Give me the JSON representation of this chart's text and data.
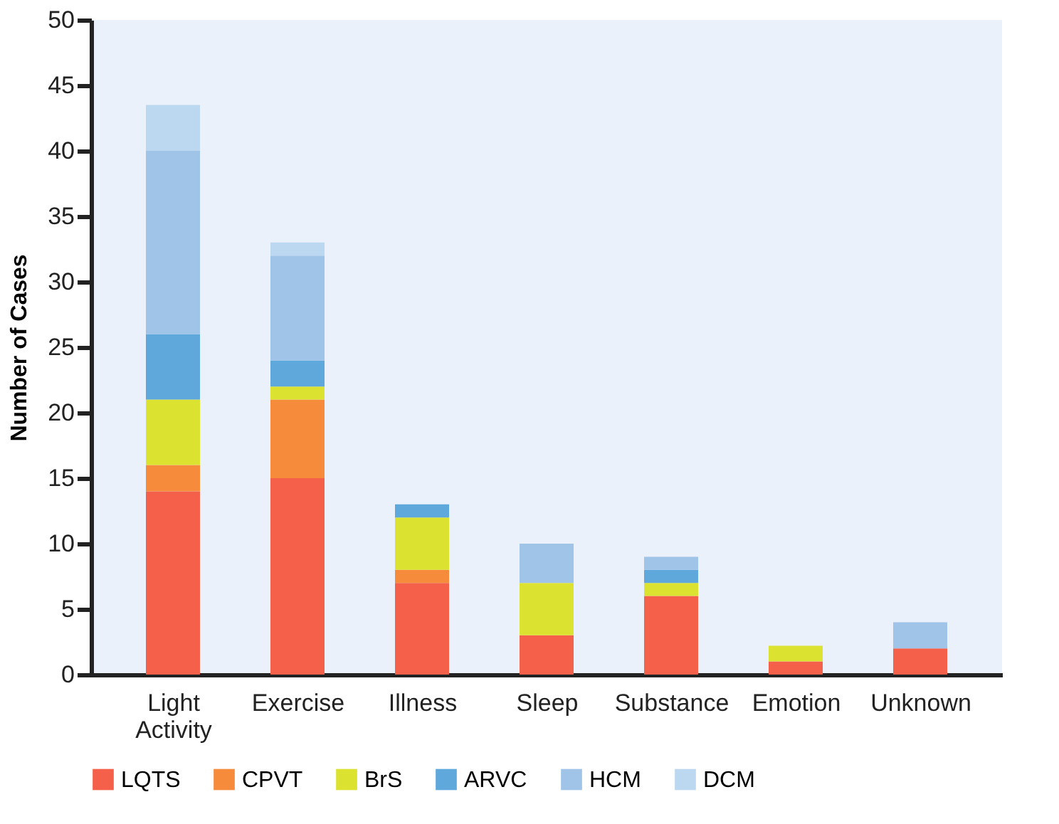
{
  "chart_data": {
    "type": "bar",
    "stacked": true,
    "ylabel": "Number of Cases",
    "categories": [
      "Light Activity",
      "Exercise",
      "Illness",
      "Sleep",
      "Substance",
      "Emotion",
      "Unknown"
    ],
    "series": [
      {
        "name": "LQTS",
        "color": "#f4604a",
        "values": [
          14,
          15,
          7,
          3,
          6,
          1,
          2
        ]
      },
      {
        "name": "CPVT",
        "color": "#f68b3c",
        "values": [
          2,
          6,
          1,
          0,
          0,
          0,
          0
        ]
      },
      {
        "name": "BrS",
        "color": "#dbe22f",
        "values": [
          5,
          1,
          4,
          4,
          1,
          1.2,
          0
        ]
      },
      {
        "name": "ARVC",
        "color": "#5fa8dc",
        "values": [
          5,
          2,
          1,
          0,
          1,
          0,
          0
        ]
      },
      {
        "name": "HCM",
        "color": "#9fc4e8",
        "values": [
          14,
          8,
          0,
          3,
          1,
          0,
          2
        ]
      },
      {
        "name": "DCM",
        "color": "#bcd7f0",
        "values": [
          3.5,
          1,
          0,
          0,
          0,
          0,
          0
        ]
      }
    ],
    "ylim": [
      0,
      50
    ],
    "yticks": [
      0,
      5,
      10,
      15,
      20,
      25,
      30,
      35,
      40,
      45,
      50
    ],
    "grid": false,
    "legend": "bottom"
  }
}
